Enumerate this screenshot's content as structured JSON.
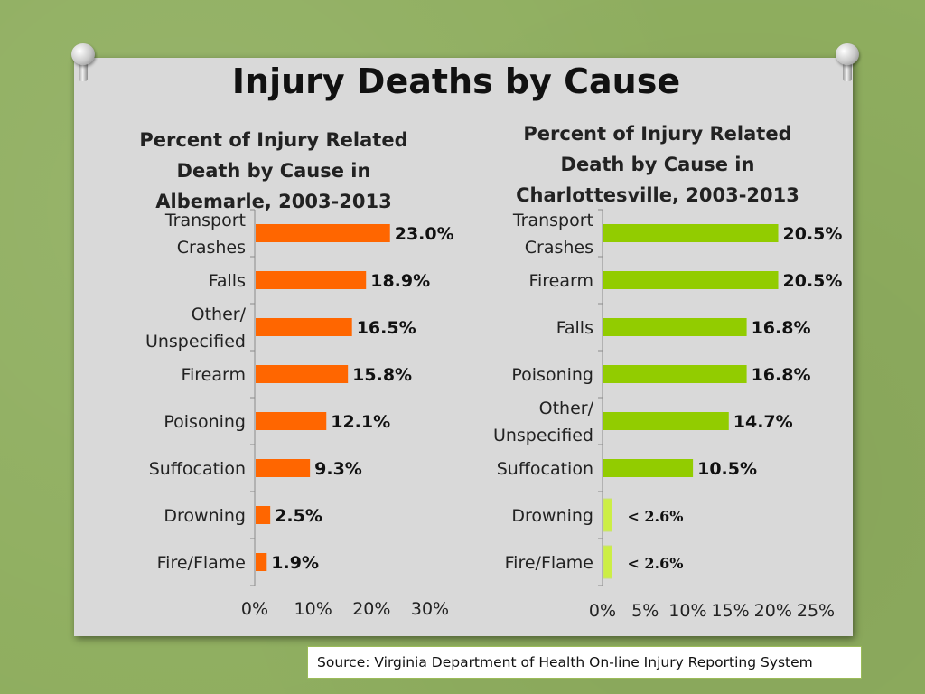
{
  "title": "Injury Deaths by Cause",
  "source": "Source: Virginia Department of Health On-line Injury Reporting System",
  "colors": {
    "left_bar": "#ff6600",
    "right_bar": "#92cc00",
    "right_bar_small": "#ccee44"
  },
  "chart_data": [
    {
      "type": "bar",
      "orientation": "horizontal",
      "title": "Percent of Injury Related Death by Cause in Albemarle, 2003-2013",
      "title_lines": [
        "Percent of Injury Related",
        "Death by Cause in",
        "Albemarle, 2003-2013"
      ],
      "categories": [
        [
          "Transport",
          "Crashes"
        ],
        [
          "Falls"
        ],
        [
          "Other/",
          "Unspecified"
        ],
        [
          "Firearm"
        ],
        [
          "Poisoning"
        ],
        [
          "Suffocation"
        ],
        [
          "Drowning"
        ],
        [
          "Fire/Flame"
        ]
      ],
      "values": [
        23.0,
        18.9,
        16.5,
        15.8,
        12.1,
        9.3,
        2.5,
        1.9
      ],
      "data_labels": [
        "23.0%",
        "18.9%",
        "16.5%",
        "15.8%",
        "12.1%",
        "9.3%",
        "2.5%",
        "1.9%"
      ],
      "xlim": [
        0,
        30
      ],
      "ticks": [
        0,
        10,
        20,
        30
      ],
      "tick_labels": [
        "0%",
        "10%",
        "20%",
        "30%"
      ],
      "grid": false
    },
    {
      "type": "bar",
      "orientation": "horizontal",
      "title": "Percent of Injury Related Death by Cause in Charlottesville, 2003-2013",
      "title_lines": [
        "Percent of Injury Related",
        "Death by Cause in",
        "Charlottesville, 2003-2013"
      ],
      "categories": [
        [
          "Transport",
          "Crashes"
        ],
        [
          "Firearm"
        ],
        [
          "Falls"
        ],
        [
          "Poisoning"
        ],
        [
          "Other/",
          "Unspecified"
        ],
        [
          "Suffocation"
        ],
        [
          "Drowning"
        ],
        [
          "Fire/Flame"
        ]
      ],
      "values": [
        20.5,
        20.5,
        16.8,
        16.8,
        14.7,
        10.5,
        1.0,
        1.0
      ],
      "data_labels": [
        "20.5%",
        "20.5%",
        "16.8%",
        "16.8%",
        "14.7%",
        "10.5%",
        "< 2.6%",
        "< 2.6%"
      ],
      "small_flags": [
        false,
        false,
        false,
        false,
        false,
        false,
        true,
        true
      ],
      "xlim": [
        0,
        25
      ],
      "ticks": [
        0,
        5,
        10,
        15,
        20,
        25
      ],
      "tick_labels": [
        "0%",
        "5%",
        "10%",
        "15%",
        "20%",
        "25%"
      ],
      "grid": false
    }
  ]
}
